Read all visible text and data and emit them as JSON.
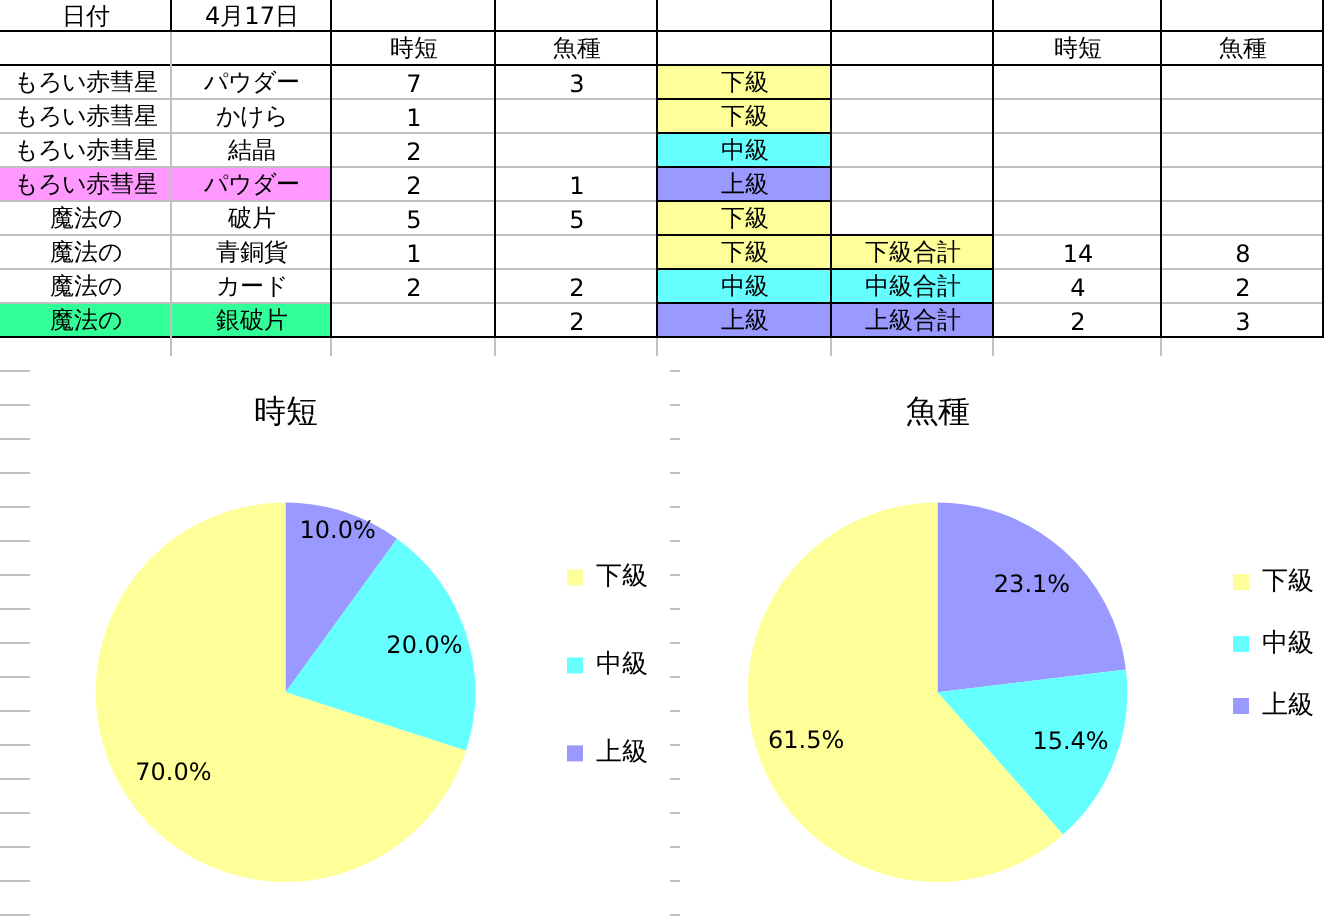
{
  "chart_data": [
    {
      "type": "other",
      "cells": [
        [
          "日付",
          "4月17日",
          null,
          null,
          null,
          null,
          null,
          null
        ],
        [
          null,
          null,
          "時短",
          "魚種",
          null,
          null,
          "時短",
          "魚種"
        ],
        [
          "もろい赤彗星",
          "パウダー",
          "7",
          "3",
          "下級",
          null,
          null,
          null
        ],
        [
          "もろい赤彗星",
          "かけら",
          "1",
          null,
          "下級",
          null,
          null,
          null
        ],
        [
          "もろい赤彗星",
          "結晶",
          "2",
          null,
          "中級",
          null,
          null,
          null
        ],
        [
          "もろい赤彗星",
          "パウダー",
          "2",
          "1",
          "上級",
          null,
          null,
          null
        ],
        [
          "魔法の",
          "破片",
          "5",
          "5",
          "下級",
          null,
          null,
          null
        ],
        [
          "魔法の",
          "青銅貨",
          "1",
          null,
          "下級",
          "下級合計",
          "14",
          "8"
        ],
        [
          "魔法の",
          "カード",
          "2",
          "2",
          "中級",
          "中級合計",
          "4",
          "2"
        ],
        [
          "魔法の",
          "銀破片",
          null,
          "2",
          "上級",
          "上級合計",
          "2",
          "3"
        ]
      ],
      "colors": [
        [
          null,
          null,
          null,
          null,
          null,
          null,
          null,
          null
        ],
        [
          null,
          null,
          null,
          null,
          null,
          null,
          null,
          null
        ],
        [
          null,
          null,
          null,
          null,
          "#ffff99",
          null,
          null,
          null
        ],
        [
          null,
          null,
          null,
          null,
          "#ffff99",
          null,
          null,
          null
        ],
        [
          null,
          null,
          null,
          null,
          "#66ffff",
          null,
          null,
          null
        ],
        [
          "#ff99ff",
          "#ff99ff",
          null,
          null,
          "#9999ff",
          null,
          null,
          null
        ],
        [
          null,
          null,
          null,
          null,
          "#ffff99",
          null,
          null,
          null
        ],
        [
          null,
          null,
          null,
          null,
          "#ffff99",
          "#ffff99",
          null,
          null
        ],
        [
          null,
          null,
          null,
          null,
          "#66ffff",
          "#66ffff",
          null,
          null
        ],
        [
          "#33ff99",
          "#33ff99",
          null,
          null,
          "#9999ff",
          "#9999ff",
          null,
          null
        ]
      ]
    },
    {
      "type": "pie",
      "title": "時短",
      "categories": [
        "下級",
        "中級",
        "上級"
      ],
      "values": [
        70,
        20,
        10
      ],
      "colors": [
        "#ffff99",
        "#66ffff",
        "#9999ff"
      ],
      "value_labels": [
        "70.0%",
        "20.0%",
        "10.0%"
      ],
      "legend": "right"
    },
    {
      "type": "pie",
      "title": "魚種",
      "categories": [
        "下級",
        "中級",
        "上級"
      ],
      "values": [
        61.5,
        15.4,
        23.1
      ],
      "colors": [
        "#ffff99",
        "#66ffff",
        "#9999ff"
      ],
      "value_labels": [
        "61.5%",
        "15.4%",
        "23.1%"
      ],
      "legend": "right"
    }
  ]
}
